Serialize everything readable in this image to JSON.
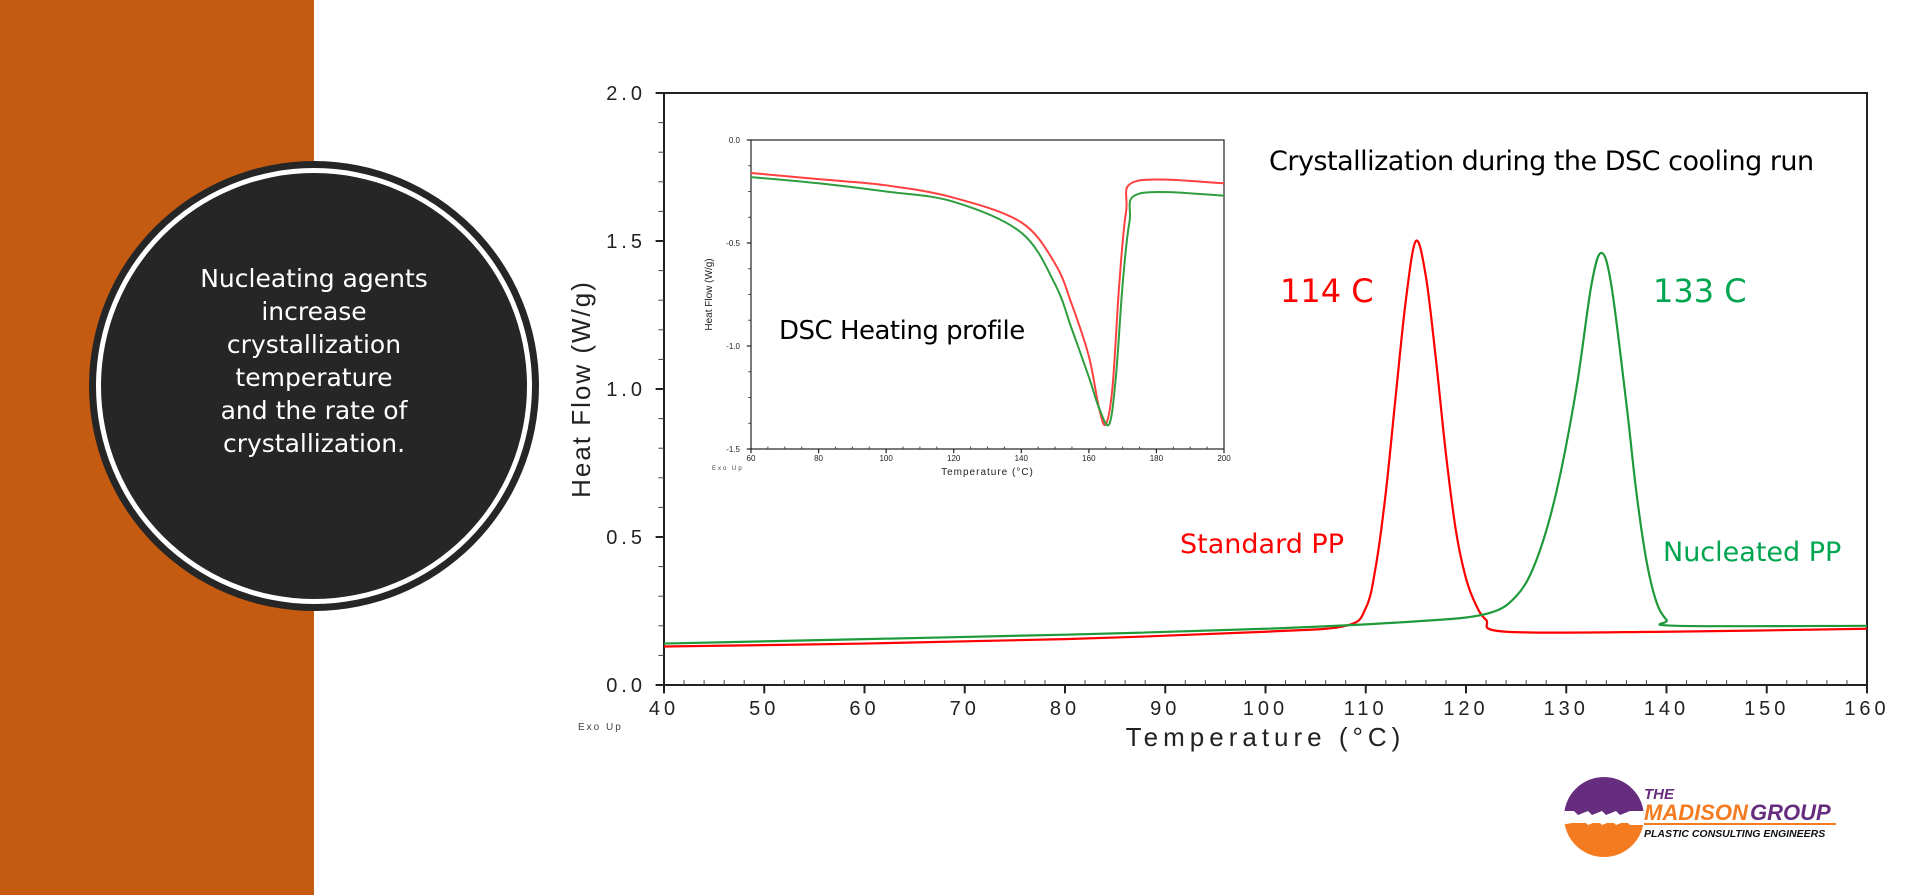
{
  "sidebar_color": "#C55A11",
  "callout": {
    "lines": [
      "Nucleating agents",
      "increase",
      "crystallization",
      "temperature",
      "and the rate of",
      "crystallization."
    ]
  },
  "annotations": {
    "title": "Crystallization during the DSC cooling run",
    "inset_title": "DSC Heating profile",
    "peak_red": "114 C",
    "peak_green": "133 C",
    "label_red": "Standard PP",
    "label_green": "Nucleated PP"
  },
  "logo": {
    "line1": "THE",
    "line2a": "MADISON",
    "line2b": "GROUP",
    "line3": "PLASTIC CONSULTING ENGINEERS",
    "colors": {
      "purple": "#662D7F",
      "orange": "#F47B20"
    }
  },
  "chart_data": [
    {
      "type": "line",
      "xlabel": "Temperature (°C)",
      "ylabel": "Heat Flow (W/g)",
      "corner_note": "Exo Up",
      "xlim": [
        40,
        160
      ],
      "ylim": [
        0.0,
        2.0
      ],
      "xticks": [
        "40",
        "50",
        "60",
        "70",
        "80",
        "90",
        "100",
        "110",
        "120",
        "130",
        "140",
        "150",
        "160"
      ],
      "yticks": [
        "0.0",
        "0.5",
        "1.0",
        "1.5",
        "2.0"
      ],
      "grid": false,
      "series": [
        {
          "color": "#FF0000",
          "points": [
            [
              40,
              0.13
            ],
            [
              60,
              0.14
            ],
            [
              80,
              0.155
            ],
            [
              100,
              0.18
            ],
            [
              108,
              0.2
            ],
            [
              110,
              0.26
            ],
            [
              111,
              0.4
            ],
            [
              112,
              0.65
            ],
            [
              113,
              0.98
            ],
            [
              114,
              1.3
            ],
            [
              115,
              1.5
            ],
            [
              116,
              1.38
            ],
            [
              117,
              1.1
            ],
            [
              118,
              0.78
            ],
            [
              119,
              0.52
            ],
            [
              120,
              0.36
            ],
            [
              121,
              0.27
            ],
            [
              122,
              0.22
            ],
            [
              124,
              0.18
            ],
            [
              140,
              0.18
            ],
            [
              160,
              0.19
            ]
          ]
        },
        {
          "color": "#1E9A3A",
          "points": [
            [
              40,
              0.14
            ],
            [
              60,
              0.155
            ],
            [
              80,
              0.17
            ],
            [
              100,
              0.19
            ],
            [
              115,
              0.215
            ],
            [
              122,
              0.24
            ],
            [
              125,
              0.3
            ],
            [
              127,
              0.42
            ],
            [
              129,
              0.65
            ],
            [
              131,
              1.0
            ],
            [
              132.5,
              1.35
            ],
            [
              133.5,
              1.46
            ],
            [
              134.5,
              1.35
            ],
            [
              136,
              0.95
            ],
            [
              137,
              0.65
            ],
            [
              138,
              0.42
            ],
            [
              139,
              0.28
            ],
            [
              140,
              0.22
            ],
            [
              141,
              0.2
            ],
            [
              160,
              0.2
            ]
          ]
        }
      ]
    },
    {
      "type": "line",
      "xlabel": "Temperature (°C)",
      "ylabel": "Heat Flow (W/g)",
      "corner_note": "Exo Up",
      "xlim": [
        60,
        200
      ],
      "ylim": [
        -1.5,
        0.0
      ],
      "xticks": [
        "60",
        "80",
        "100",
        "120",
        "140",
        "160",
        "180",
        "200"
      ],
      "yticks": [
        "-1.5",
        "-1.0",
        "-0.5",
        "0.0"
      ],
      "grid": false,
      "series": [
        {
          "color": "#FF4040",
          "points": [
            [
              60,
              -0.16
            ],
            [
              80,
              -0.19
            ],
            [
              100,
              -0.22
            ],
            [
              120,
              -0.28
            ],
            [
              140,
              -0.4
            ],
            [
              150,
              -0.6
            ],
            [
              155,
              -0.8
            ],
            [
              160,
              -1.05
            ],
            [
              163,
              -1.3
            ],
            [
              165,
              -1.38
            ],
            [
              167,
              -1.2
            ],
            [
              169,
              -0.7
            ],
            [
              171,
              -0.35
            ],
            [
              174,
              -0.2
            ],
            [
              200,
              -0.21
            ]
          ]
        },
        {
          "color": "#2E9E3E",
          "points": [
            [
              60,
              -0.18
            ],
            [
              80,
              -0.21
            ],
            [
              100,
              -0.25
            ],
            [
              120,
              -0.3
            ],
            [
              140,
              -0.45
            ],
            [
              150,
              -0.7
            ],
            [
              155,
              -0.92
            ],
            [
              160,
              -1.15
            ],
            [
              163,
              -1.3
            ],
            [
              166,
              -1.38
            ],
            [
              168,
              -1.15
            ],
            [
              170,
              -0.7
            ],
            [
              172,
              -0.4
            ],
            [
              175,
              -0.26
            ],
            [
              200,
              -0.27
            ]
          ]
        }
      ]
    }
  ]
}
